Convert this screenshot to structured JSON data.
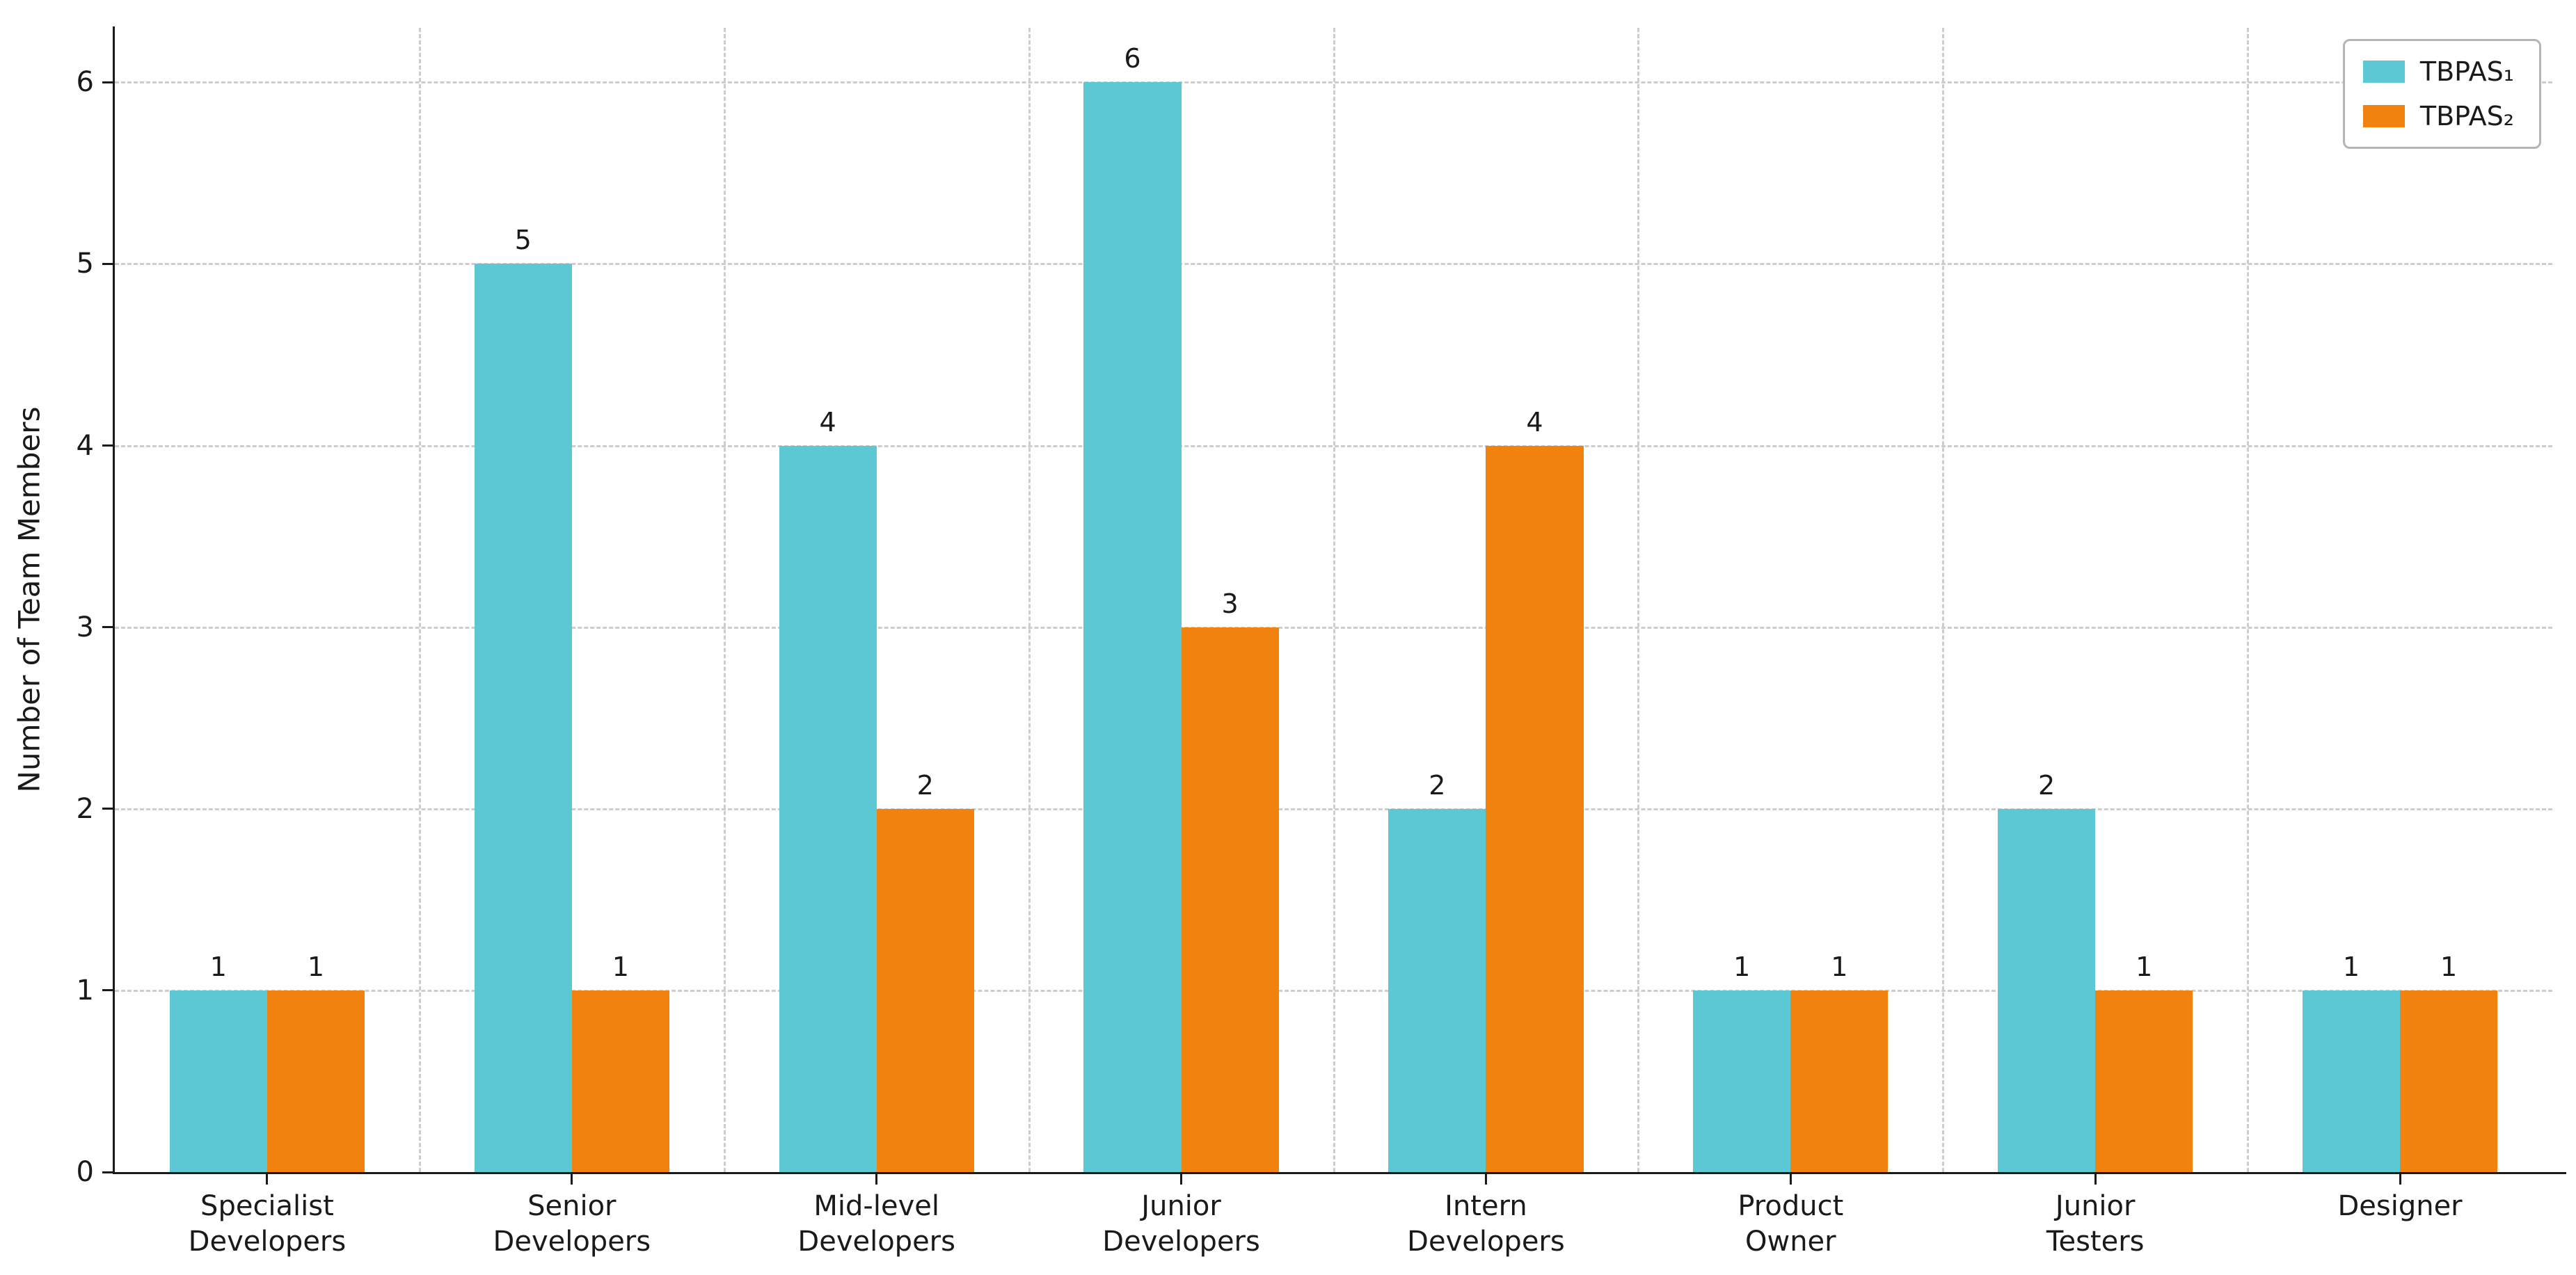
{
  "chart_data": {
    "type": "bar",
    "title": "",
    "xlabel": "",
    "ylabel": "Number of Team Members",
    "categories": [
      "Specialist\nDevelopers",
      "Senior\nDevelopers",
      "Mid-level\nDevelopers",
      "Junior\nDevelopers",
      "Intern\nDevelopers",
      "Product\nOwner",
      "Junior\nTesters",
      "Designer"
    ],
    "series": [
      {
        "name": "TBPAS₁",
        "color": "#5bc8d4",
        "values": [
          1,
          5,
          4,
          6,
          2,
          1,
          2,
          1
        ]
      },
      {
        "name": "TBPAS₂",
        "color": "#f0820d",
        "values": [
          1,
          1,
          2,
          3,
          4,
          1,
          1,
          1
        ]
      }
    ],
    "yticks": [
      0,
      1,
      2,
      3,
      4,
      5,
      6
    ],
    "ylim": [
      0,
      6.3
    ],
    "grid": {
      "horizontal": true,
      "vertical": true,
      "style": "dashed"
    },
    "bar_value_labels": true,
    "legend_position": "upper right"
  }
}
